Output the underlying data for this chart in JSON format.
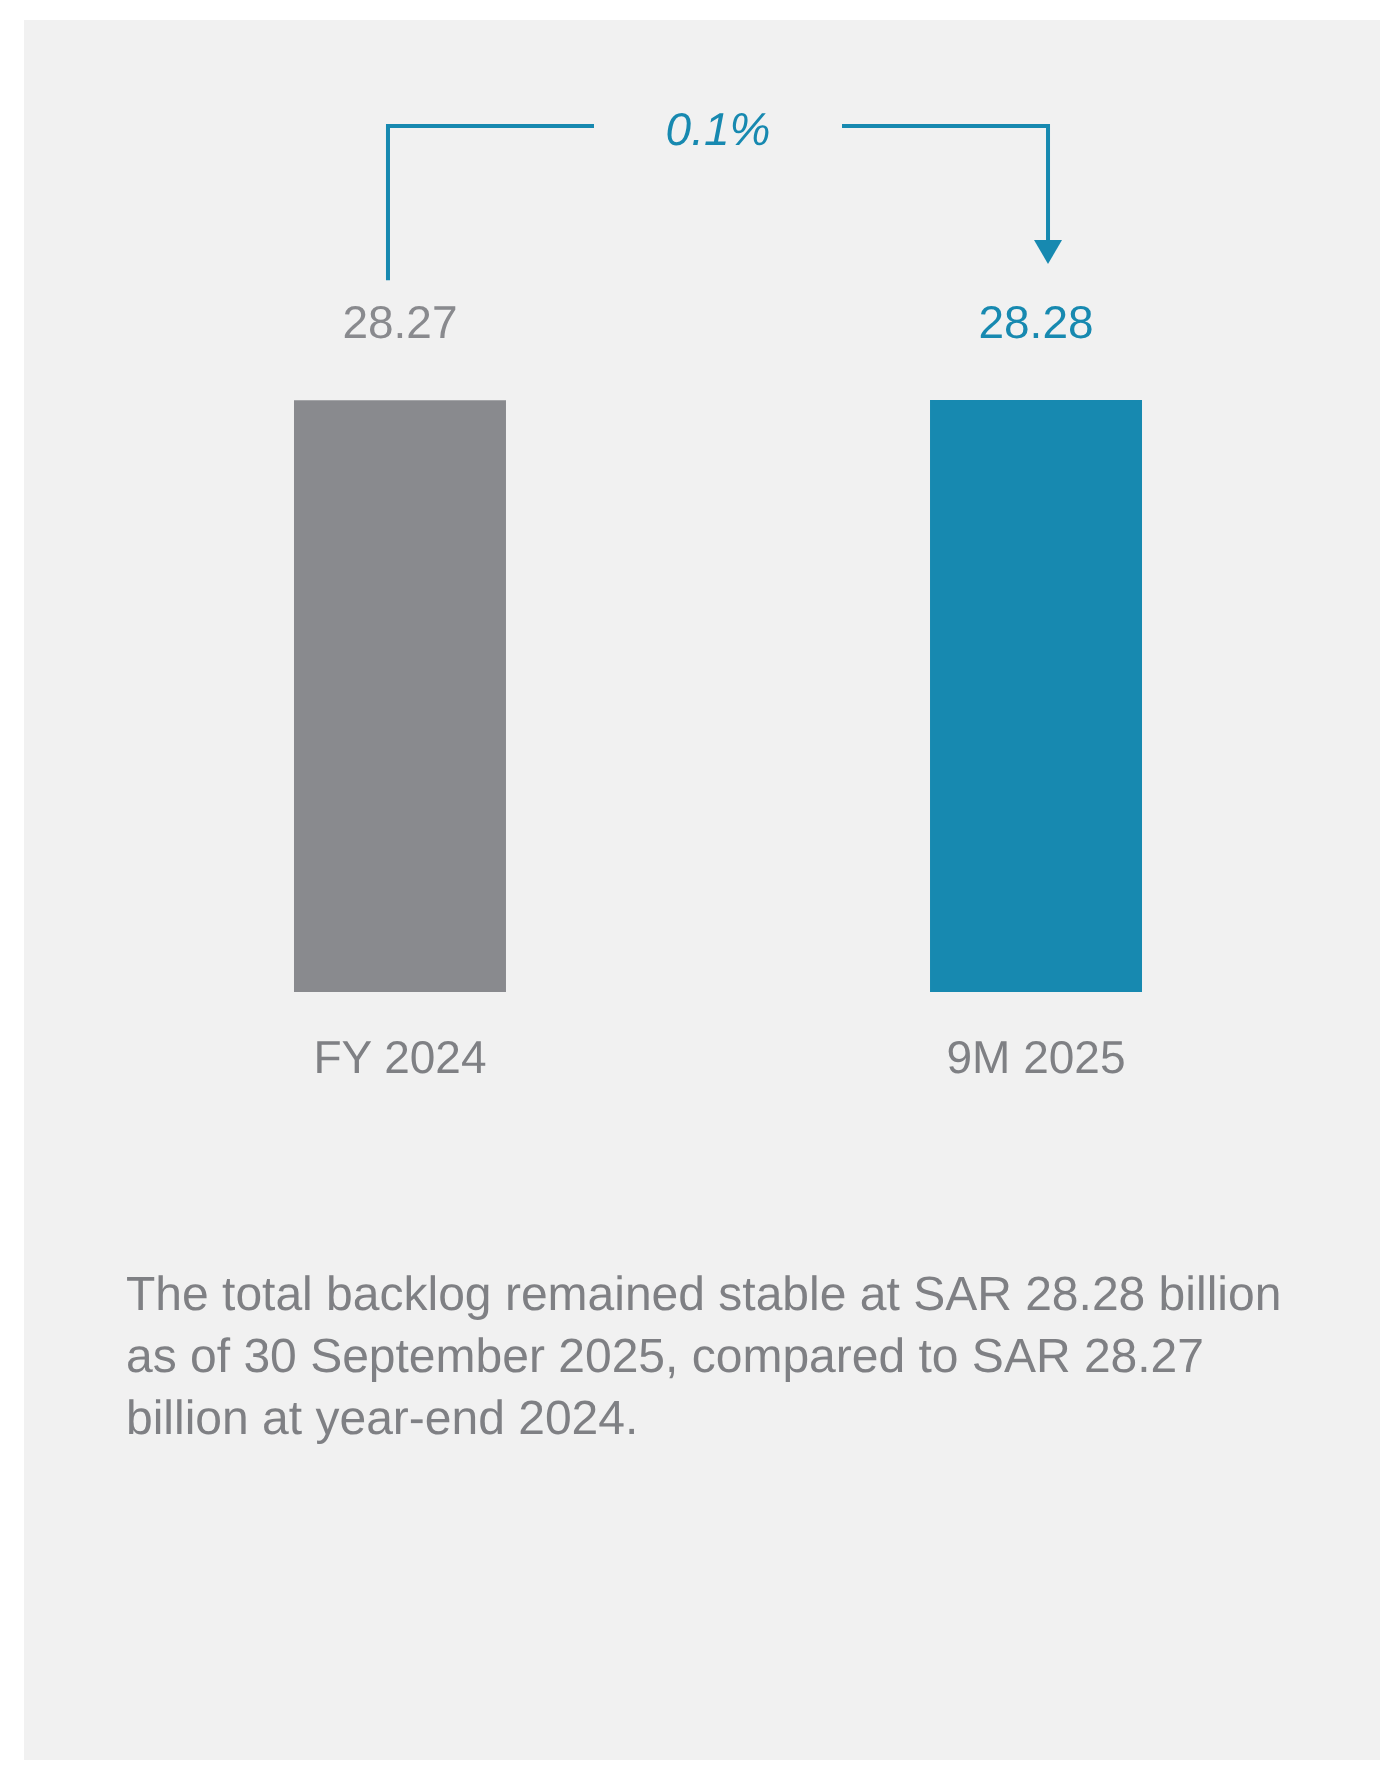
{
  "chart_data": {
    "type": "bar",
    "categories": [
      "FY 2024",
      "9M 2025"
    ],
    "values": [
      28.27,
      28.28
    ],
    "colors": [
      "#898a8e",
      "#1789b0"
    ],
    "data_labels": true,
    "annotations": [
      "0.1%",
      "The total backlog remained stable at SAR 28.28 billion as of 30 September 2025, compared to SAR 28.27 billion at year-end 2024."
    ]
  }
}
